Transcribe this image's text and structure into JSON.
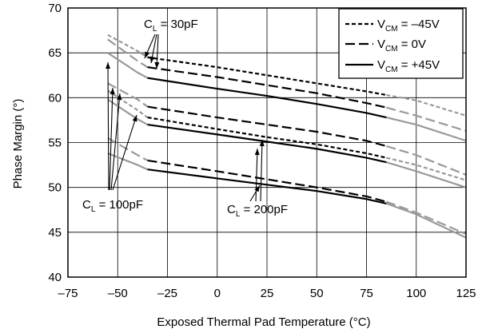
{
  "chart_data": {
    "type": "line",
    "xlabel": "Exposed Thermal Pad Temperature (°C)",
    "ylabel": "Phase Margin (°)",
    "xlim": [
      -75,
      125
    ],
    "ylim": [
      40,
      70
    ],
    "xticks": [
      -75,
      -50,
      -25,
      0,
      25,
      50,
      75,
      100,
      125
    ],
    "yticks": [
      40,
      45,
      50,
      55,
      60,
      65,
      70
    ],
    "xtick_labels": [
      "–75",
      "–50",
      "–25",
      "0",
      "25",
      "50",
      "75",
      "100",
      "125"
    ],
    "ytick_labels": [
      "40",
      "45",
      "50",
      "55",
      "60",
      "65",
      "70"
    ],
    "grid": true,
    "legend": {
      "placement": "top-right",
      "entries": [
        {
          "main": "V",
          "sub": "CM",
          "rest": " = –45V",
          "style": "dotted"
        },
        {
          "main": "V",
          "sub": "CM",
          "rest": " = 0V",
          "style": "dashed"
        },
        {
          "main": "V",
          "sub": "CM",
          "rest": " = +45V",
          "style": "solid"
        }
      ]
    },
    "annotations": [
      {
        "main": "C",
        "sub": "L",
        "rest": " = 30pF"
      },
      {
        "main": "C",
        "sub": "L",
        "rest": " = 100pF"
      },
      {
        "main": "C",
        "sub": "L",
        "rest": " = 200pF"
      }
    ],
    "groups": [
      {
        "load": "30pF",
        "series": [
          {
            "vcm": "–45V",
            "style": "dotted",
            "x": [
              -55,
              -40,
              -35,
              0,
              25,
              50,
              75,
              85,
              100,
              125
            ],
            "y": [
              67.0,
              65.2,
              64.5,
              63.4,
              62.5,
              61.6,
              60.7,
              60.3,
              59.7,
              58.0
            ]
          },
          {
            "vcm": "0V",
            "style": "dashed",
            "x": [
              -55,
              -40,
              -35,
              0,
              25,
              50,
              75,
              85,
              100,
              125
            ],
            "y": [
              66.5,
              64.1,
              63.4,
              62.3,
              61.4,
              60.5,
              59.4,
              58.9,
              58.0,
              56.3
            ]
          },
          {
            "vcm": "+45V",
            "style": "solid",
            "x": [
              -55,
              -40,
              -35,
              0,
              25,
              50,
              75,
              85,
              100,
              125
            ],
            "y": [
              65.0,
              62.8,
              62.2,
              61.0,
              60.2,
              59.3,
              58.3,
              57.8,
              57.0,
              55.2
            ]
          }
        ]
      },
      {
        "load": "100pF",
        "series": [
          {
            "vcm": "–45V",
            "style": "dotted",
            "x": [
              -55,
              -40,
              -35,
              0,
              25,
              50,
              75,
              85,
              100,
              125
            ],
            "y": [
              60.8,
              58.6,
              57.8,
              56.5,
              55.6,
              54.8,
              53.8,
              53.3,
              52.5,
              50.8
            ]
          },
          {
            "vcm": "0V",
            "style": "dashed",
            "x": [
              -55,
              -40,
              -35,
              0,
              25,
              50,
              75,
              85,
              100,
              125
            ],
            "y": [
              61.6,
              59.8,
              59.0,
              57.8,
              57.0,
              56.2,
              55.2,
              54.6,
              53.6,
              51.4
            ]
          },
          {
            "vcm": "+45V",
            "style": "solid",
            "x": [
              -55,
              -40,
              -35,
              0,
              25,
              50,
              75,
              85,
              100,
              125
            ],
            "y": [
              59.8,
              57.6,
              57.0,
              55.9,
              55.1,
              54.3,
              53.3,
              52.8,
              51.8,
              50.0
            ]
          }
        ]
      },
      {
        "load": "200pF",
        "series": [
          {
            "vcm": "0V",
            "style": "dashed",
            "x": [
              -55,
              -40,
              -35,
              0,
              25,
              50,
              75,
              85,
              100,
              125
            ],
            "y": [
              55.5,
              53.6,
              53.0,
              51.8,
              50.9,
              50.0,
              49.0,
              48.4,
              47.2,
              44.8
            ]
          },
          {
            "vcm": "+45V",
            "style": "solid",
            "x": [
              -55,
              -40,
              -35,
              0,
              25,
              50,
              75,
              85,
              100,
              125
            ],
            "y": [
              53.8,
              52.5,
              52.0,
              51.0,
              50.3,
              49.6,
              48.7,
              48.2,
              47.0,
              44.4
            ]
          }
        ]
      }
    ]
  }
}
